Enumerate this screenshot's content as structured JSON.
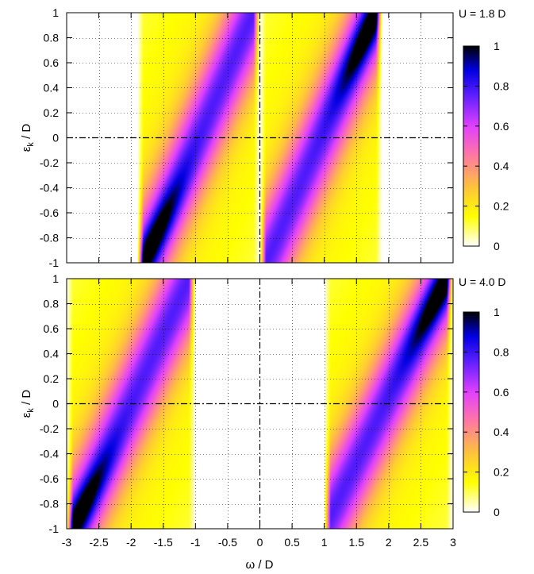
{
  "chart_data": [
    {
      "type": "heatmap",
      "annotation": "U = 1.8 D",
      "xlabel": "ω / D",
      "ylabel_base": "ε",
      "ylabel_sub": "k",
      "ylabel_rest": " / D",
      "xlim": [
        -3,
        3
      ],
      "ylim": [
        -1,
        1
      ],
      "yticks": [
        "-1",
        "-0.8",
        "-0.6",
        "-0.4",
        "-0.2",
        "0",
        "0.2",
        "0.4",
        "0.6",
        "0.8",
        "1"
      ],
      "colorbar": {
        "range": [
          0,
          1
        ],
        "ticks": [
          "0",
          "0.2",
          "0.4",
          "0.6",
          "0.8",
          "1"
        ]
      },
      "bands": [
        {
          "omega_min": 0.0,
          "omega_max": 1.9,
          "ridge_at_eps_-1": 0.1,
          "ridge_at_eps_1": 1.8,
          "peak_at_eps": 0.9
        },
        {
          "omega_min": -1.9,
          "omega_max": 0.0,
          "ridge_at_eps_-1": -1.8,
          "ridge_at_eps_1": -0.1,
          "peak_at_eps": -0.9
        }
      ]
    },
    {
      "type": "heatmap",
      "annotation": "U = 4.0 D",
      "xlabel": "ω / D",
      "ylabel_base": "ε",
      "ylabel_sub": "k",
      "ylabel_rest": " / D",
      "xlim": [
        -3,
        3
      ],
      "ylim": [
        -1,
        1
      ],
      "xticks": [
        "-3",
        "-2.5",
        "-2",
        "-1.5",
        "-1",
        "-0.5",
        "0",
        "0.5",
        "1",
        "1.5",
        "2",
        "2.5",
        "3"
      ],
      "yticks": [
        "-1",
        "-0.8",
        "-0.6",
        "-0.4",
        "-0.2",
        "0",
        "0.2",
        "0.4",
        "0.6",
        "0.8",
        "1"
      ],
      "colorbar": {
        "range": [
          0,
          1
        ],
        "ticks": [
          "0",
          "0.2",
          "0.4",
          "0.6",
          "0.8",
          "1"
        ]
      },
      "bands": [
        {
          "omega_min": 1.0,
          "omega_max": 3.0,
          "ridge_at_eps_-1": 1.0,
          "ridge_at_eps_1": 2.9,
          "peak_at_eps": 0.95
        },
        {
          "omega_min": -3.0,
          "omega_max": -1.0,
          "ridge_at_eps_-1": -2.9,
          "ridge_at_eps_1": -1.1,
          "peak_at_eps": -0.95
        }
      ]
    }
  ]
}
